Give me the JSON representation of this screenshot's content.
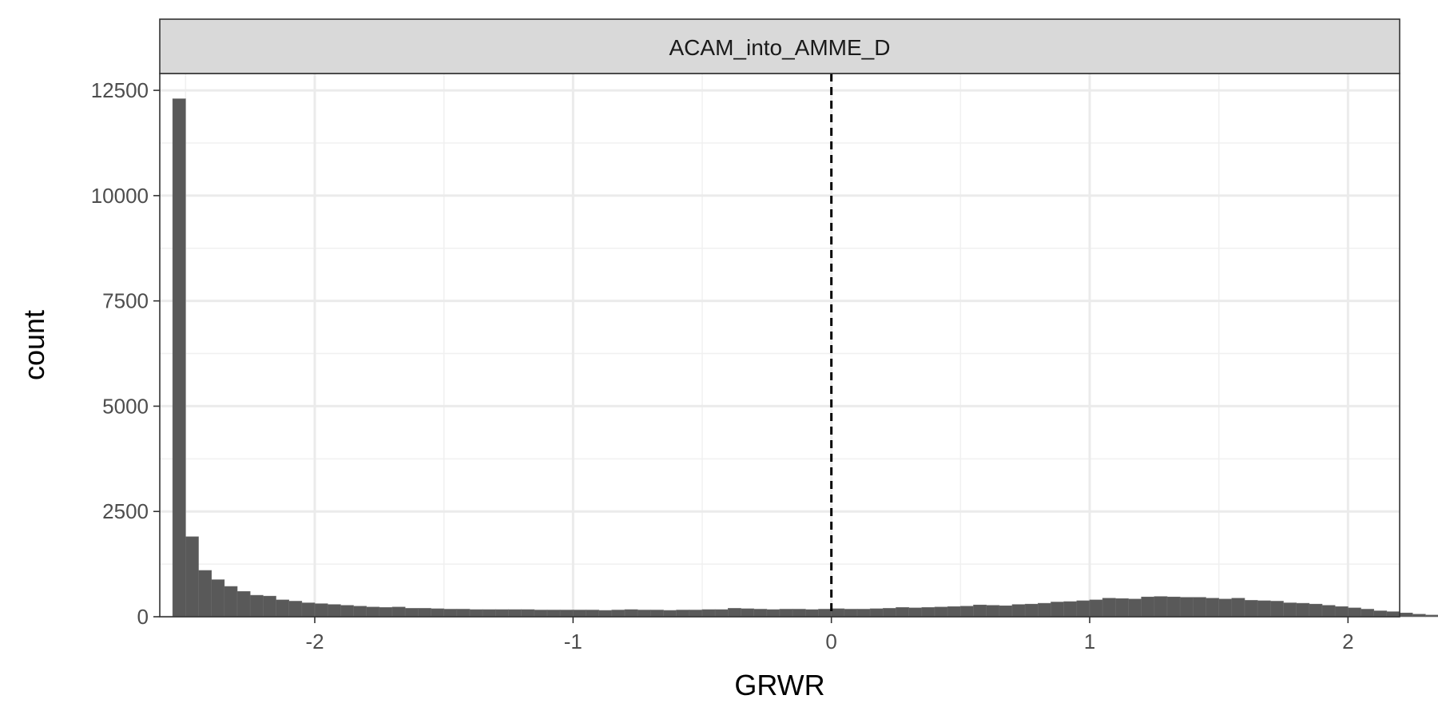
{
  "chart_data": {
    "type": "bar",
    "panel_title": "ACAM_into_AMME_D",
    "title": "",
    "xlabel": "GRWR",
    "ylabel": "count",
    "xlim": [
      -2.6,
      2.2
    ],
    "ylim": [
      0,
      12900
    ],
    "x_ticks": [
      -2,
      -1,
      0,
      1,
      2
    ],
    "x_tick_labels": [
      "-2",
      "-1",
      "0",
      "1",
      "2"
    ],
    "y_ticks": [
      0,
      2500,
      5000,
      7500,
      10000,
      12500
    ],
    "y_tick_labels": [
      "0",
      "2500",
      "5000",
      "7500",
      "10000",
      "12500"
    ],
    "grid": true,
    "reference_line": {
      "x": 0,
      "style": "dashed",
      "color": "#000000"
    },
    "bar_color": "#595959",
    "bin_width": 0.05,
    "bin_start": -2.55,
    "values": [
      12300,
      1900,
      1100,
      880,
      720,
      600,
      510,
      490,
      400,
      370,
      330,
      310,
      290,
      270,
      250,
      230,
      220,
      230,
      200,
      200,
      190,
      180,
      180,
      170,
      170,
      170,
      170,
      170,
      160,
      160,
      160,
      160,
      160,
      150,
      160,
      170,
      160,
      160,
      150,
      160,
      160,
      170,
      170,
      200,
      190,
      180,
      170,
      180,
      180,
      170,
      180,
      190,
      180,
      180,
      190,
      200,
      220,
      210,
      220,
      230,
      240,
      250,
      280,
      270,
      260,
      290,
      300,
      320,
      350,
      360,
      380,
      400,
      440,
      430,
      420,
      470,
      480,
      470,
      460,
      460,
      440,
      420,
      440,
      390,
      380,
      370,
      330,
      320,
      300,
      270,
      240,
      210,
      180,
      140,
      120,
      90,
      60,
      40,
      30,
      20,
      15,
      10,
      8,
      5,
      3
    ]
  }
}
